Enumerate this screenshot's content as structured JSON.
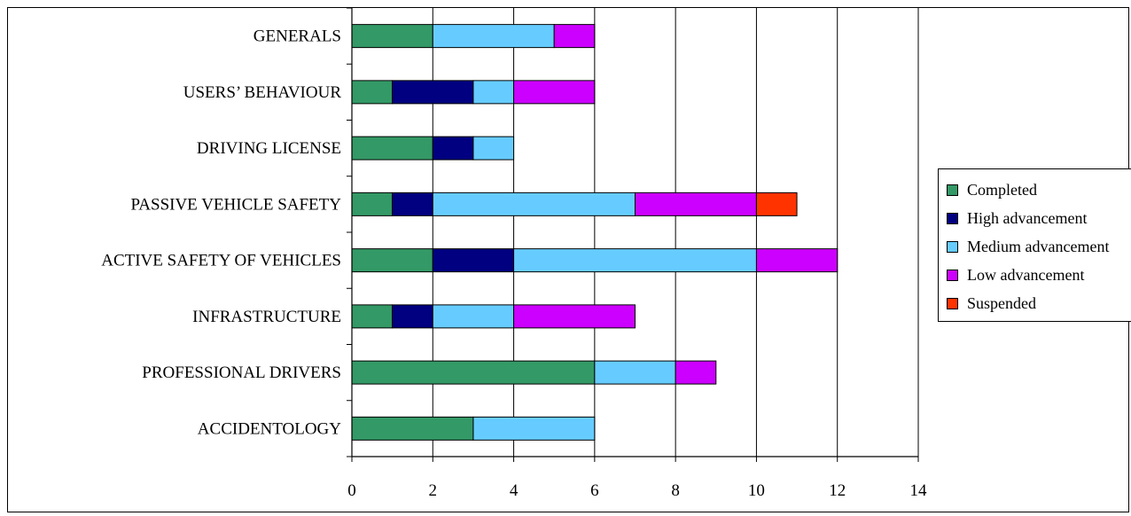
{
  "chart_data": {
    "type": "bar",
    "orientation": "horizontal",
    "stacked": true,
    "categories": [
      "GENERALS",
      "USERS’ BEHAVIOUR",
      "DRIVING LICENSE",
      "PASSIVE VEHICLE SAFETY",
      "ACTIVE SAFETY OF VEHICLES",
      "INFRASTRUCTURE",
      "PROFESSIONAL DRIVERS",
      "ACCIDENTOLOGY"
    ],
    "series": [
      {
        "name": "Completed",
        "color": "#339966",
        "values": [
          2,
          1,
          2,
          1,
          2,
          1,
          6,
          3
        ]
      },
      {
        "name": "High advancement",
        "color": "#000080",
        "values": [
          0,
          2,
          1,
          1,
          2,
          1,
          0,
          0
        ]
      },
      {
        "name": "Medium advancement",
        "color": "#66ccff",
        "values": [
          3,
          1,
          1,
          5,
          6,
          2,
          2,
          3
        ]
      },
      {
        "name": "Low advancement",
        "color": "#cc00ff",
        "values": [
          1,
          2,
          0,
          3,
          2,
          3,
          1,
          0
        ]
      },
      {
        "name": "Suspended",
        "color": "#ff3300",
        "values": [
          0,
          0,
          0,
          1,
          0,
          0,
          0,
          0
        ]
      }
    ],
    "xlim": [
      0,
      14
    ],
    "xticks": [
      0,
      2,
      4,
      6,
      8,
      10,
      12,
      14
    ],
    "xgrid": true,
    "legend_position": "right",
    "title": "",
    "xlabel": "",
    "ylabel": ""
  }
}
